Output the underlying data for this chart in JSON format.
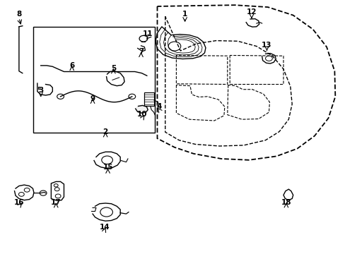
{
  "bg_color": "#ffffff",
  "callout_positions": {
    "1": [
      0.535,
      0.93,
      0.535,
      0.905
    ],
    "2": [
      0.305,
      0.468,
      0.305,
      0.48
    ],
    "3": [
      0.118,
      0.63,
      0.118,
      0.61
    ],
    "4": [
      0.46,
      0.568,
      0.452,
      0.582
    ],
    "5": [
      0.328,
      0.718,
      0.328,
      0.73
    ],
    "6": [
      0.208,
      0.728,
      0.208,
      0.742
    ],
    "7": [
      0.408,
      0.782,
      0.408,
      0.795
    ],
    "8": [
      0.055,
      0.93,
      0.062,
      0.895
    ],
    "9": [
      0.268,
      0.598,
      0.268,
      0.612
    ],
    "10": [
      0.412,
      0.535,
      0.418,
      0.548
    ],
    "11": [
      0.428,
      0.852,
      0.42,
      0.84
    ],
    "12": [
      0.728,
      0.94,
      0.728,
      0.918
    ],
    "13": [
      0.772,
      0.808,
      0.772,
      0.792
    ],
    "14": [
      0.302,
      0.092,
      0.308,
      0.112
    ],
    "15": [
      0.312,
      0.328,
      0.312,
      0.345
    ],
    "16": [
      0.055,
      0.188,
      0.068,
      0.208
    ],
    "17": [
      0.162,
      0.188,
      0.162,
      0.21
    ],
    "18": [
      0.828,
      0.188,
      0.828,
      0.21
    ]
  }
}
